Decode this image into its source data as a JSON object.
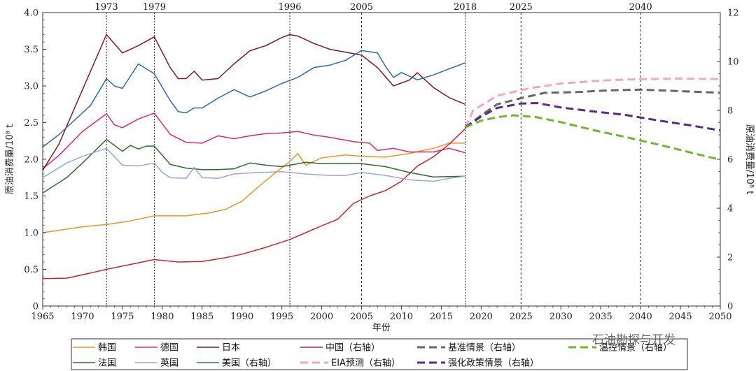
{
  "watermark": "石油勘探与开发",
  "chart_data": {
    "type": "line",
    "xlabel": "年份",
    "ylabel_left": "原油消费量/10⁸ t",
    "ylabel_right": "原油消费量/10⁸ t",
    "xlim": [
      1965,
      2050
    ],
    "ylim_left": [
      0,
      4.0
    ],
    "ylim_right": [
      0,
      12
    ],
    "x_ticks": [
      "1965",
      "1970",
      "1975",
      "1980",
      "1985",
      "1990",
      "1995",
      "2000",
      "2005",
      "2010",
      "2015",
      "2020",
      "2025",
      "2030",
      "2035",
      "2040",
      "2045",
      "2050"
    ],
    "y_left_ticks": [
      "0",
      "0.5",
      "1.0",
      "1.5",
      "2.0",
      "2.5",
      "3.0",
      "3.5",
      "4.0"
    ],
    "y_right_ticks": [
      "0",
      "2",
      "4",
      "6",
      "8",
      "10",
      "12"
    ],
    "reference_years": [
      {
        "year": 1973,
        "label": "1973",
        "style": "dotted"
      },
      {
        "year": 1979,
        "label": "1979",
        "style": "dotted"
      },
      {
        "year": 1996,
        "label": "1996",
        "style": "dotted"
      },
      {
        "year": 2005,
        "label": "2005",
        "style": "dashed"
      },
      {
        "year": 2018,
        "label": "2018",
        "style": "dotted"
      },
      {
        "year": 2025,
        "label": "2025",
        "style": "dashed"
      },
      {
        "year": 2040,
        "label": "2040",
        "style": "dashed"
      }
    ],
    "series": [
      {
        "name": "韩国",
        "color": "#f0912a",
        "axis": "left",
        "dash": "solid",
        "points": [
          [
            1965,
            1.0
          ],
          [
            1970,
            1.08
          ],
          [
            1973,
            1.11
          ],
          [
            1976,
            1.16
          ],
          [
            1979,
            1.23
          ],
          [
            1983,
            1.23
          ],
          [
            1986,
            1.27
          ],
          [
            1988,
            1.32
          ],
          [
            1990,
            1.43
          ],
          [
            1992,
            1.62
          ],
          [
            1994,
            1.8
          ],
          [
            1996,
            1.97
          ],
          [
            1997,
            2.08
          ],
          [
            1998,
            1.92
          ],
          [
            2000,
            2.02
          ],
          [
            2003,
            2.06
          ],
          [
            2005,
            2.04
          ],
          [
            2008,
            2.03
          ],
          [
            2011,
            2.08
          ],
          [
            2014,
            2.15
          ],
          [
            2016,
            2.22
          ],
          [
            2018,
            2.22
          ]
        ]
      },
      {
        "name": "德国",
        "color": "#d8286f",
        "axis": "left",
        "dash": "solid",
        "points": [
          [
            1965,
            1.87
          ],
          [
            1967,
            2.05
          ],
          [
            1970,
            2.38
          ],
          [
            1973,
            2.62
          ],
          [
            1974,
            2.47
          ],
          [
            1975,
            2.43
          ],
          [
            1977,
            2.55
          ],
          [
            1979,
            2.63
          ],
          [
            1981,
            2.34
          ],
          [
            1983,
            2.23
          ],
          [
            1985,
            2.22
          ],
          [
            1987,
            2.32
          ],
          [
            1989,
            2.28
          ],
          [
            1991,
            2.32
          ],
          [
            1993,
            2.35
          ],
          [
            1995,
            2.36
          ],
          [
            1997,
            2.38
          ],
          [
            1999,
            2.33
          ],
          [
            2001,
            2.3
          ],
          [
            2004,
            2.24
          ],
          [
            2006,
            2.22
          ],
          [
            2007,
            2.12
          ],
          [
            2009,
            2.15
          ],
          [
            2011,
            2.1
          ],
          [
            2014,
            2.1
          ],
          [
            2016,
            2.15
          ],
          [
            2018,
            2.09
          ]
        ]
      },
      {
        "name": "日本",
        "color": "#7c1a1e",
        "axis": "left",
        "dash": "solid",
        "points": [
          [
            1965,
            1.85
          ],
          [
            1967,
            2.2
          ],
          [
            1969,
            2.7
          ],
          [
            1971,
            3.2
          ],
          [
            1973,
            3.7
          ],
          [
            1975,
            3.45
          ],
          [
            1977,
            3.55
          ],
          [
            1979,
            3.67
          ],
          [
            1981,
            3.25
          ],
          [
            1982,
            3.1
          ],
          [
            1983,
            3.1
          ],
          [
            1984,
            3.2
          ],
          [
            1985,
            3.08
          ],
          [
            1987,
            3.1
          ],
          [
            1989,
            3.3
          ],
          [
            1991,
            3.48
          ],
          [
            1993,
            3.55
          ],
          [
            1995,
            3.66
          ],
          [
            1996,
            3.7
          ],
          [
            1997,
            3.68
          ],
          [
            1999,
            3.58
          ],
          [
            2001,
            3.5
          ],
          [
            2003,
            3.46
          ],
          [
            2005,
            3.42
          ],
          [
            2007,
            3.25
          ],
          [
            2009,
            3.0
          ],
          [
            2011,
            3.08
          ],
          [
            2012,
            3.18
          ],
          [
            2014,
            2.98
          ],
          [
            2016,
            2.84
          ],
          [
            2018,
            2.75
          ]
        ]
      },
      {
        "name": "中国（右轴）",
        "color": "#c0262c",
        "axis": "right",
        "dash": "solid",
        "points": [
          [
            1965,
            1.12
          ],
          [
            1968,
            1.14
          ],
          [
            1971,
            1.35
          ],
          [
            1973,
            1.5
          ],
          [
            1976,
            1.7
          ],
          [
            1979,
            1.9
          ],
          [
            1982,
            1.8
          ],
          [
            1985,
            1.82
          ],
          [
            1988,
            1.98
          ],
          [
            1990,
            2.12
          ],
          [
            1993,
            2.4
          ],
          [
            1996,
            2.72
          ],
          [
            1998,
            3.0
          ],
          [
            2000,
            3.28
          ],
          [
            2002,
            3.55
          ],
          [
            2004,
            4.2
          ],
          [
            2006,
            4.5
          ],
          [
            2008,
            4.72
          ],
          [
            2010,
            5.1
          ],
          [
            2012,
            5.72
          ],
          [
            2014,
            6.1
          ],
          [
            2016,
            6.62
          ],
          [
            2018,
            7.25
          ]
        ]
      },
      {
        "name": "法国",
        "color": "#2e6b2e",
        "axis": "left",
        "dash": "solid",
        "points": [
          [
            1965,
            1.54
          ],
          [
            1968,
            1.75
          ],
          [
            1970,
            1.95
          ],
          [
            1973,
            2.27
          ],
          [
            1975,
            2.11
          ],
          [
            1976,
            2.19
          ],
          [
            1977,
            2.14
          ],
          [
            1978,
            2.18
          ],
          [
            1979,
            2.18
          ],
          [
            1981,
            1.93
          ],
          [
            1983,
            1.88
          ],
          [
            1985,
            1.86
          ],
          [
            1987,
            1.86
          ],
          [
            1989,
            1.87
          ],
          [
            1991,
            1.95
          ],
          [
            1993,
            1.92
          ],
          [
            1995,
            1.9
          ],
          [
            1998,
            1.96
          ],
          [
            2000,
            1.94
          ],
          [
            2003,
            1.94
          ],
          [
            2005,
            1.94
          ],
          [
            2008,
            1.9
          ],
          [
            2011,
            1.82
          ],
          [
            2014,
            1.76
          ],
          [
            2018,
            1.77
          ]
        ]
      },
      {
        "name": "英国",
        "color": "#9aa6d8",
        "axis": "left",
        "dash": "solid",
        "points": [
          [
            1965,
            1.75
          ],
          [
            1968,
            1.95
          ],
          [
            1970,
            2.04
          ],
          [
            1973,
            2.15
          ],
          [
            1975,
            1.92
          ],
          [
            1977,
            1.91
          ],
          [
            1979,
            1.95
          ],
          [
            1980,
            1.82
          ],
          [
            1981,
            1.75
          ],
          [
            1983,
            1.74
          ],
          [
            1984,
            1.89
          ],
          [
            1985,
            1.75
          ],
          [
            1987,
            1.74
          ],
          [
            1989,
            1.8
          ],
          [
            1992,
            1.82
          ],
          [
            1995,
            1.83
          ],
          [
            1998,
            1.8
          ],
          [
            2001,
            1.78
          ],
          [
            2003,
            1.78
          ],
          [
            2005,
            1.82
          ],
          [
            2008,
            1.78
          ],
          [
            2011,
            1.72
          ],
          [
            2014,
            1.7
          ],
          [
            2016,
            1.74
          ],
          [
            2018,
            1.77
          ]
        ]
      },
      {
        "name": "美国（右轴）",
        "color": "#2f6aa8",
        "axis": "right",
        "dash": "solid",
        "points": [
          [
            1965,
            6.5
          ],
          [
            1967,
            7.0
          ],
          [
            1970,
            7.9
          ],
          [
            1971,
            8.2
          ],
          [
            1973,
            9.3
          ],
          [
            1974,
            9.0
          ],
          [
            1975,
            8.9
          ],
          [
            1977,
            9.9
          ],
          [
            1979,
            9.5
          ],
          [
            1981,
            8.4
          ],
          [
            1982,
            7.95
          ],
          [
            1983,
            7.9
          ],
          [
            1984,
            8.1
          ],
          [
            1985,
            8.1
          ],
          [
            1987,
            8.5
          ],
          [
            1989,
            8.85
          ],
          [
            1991,
            8.55
          ],
          [
            1993,
            8.8
          ],
          [
            1995,
            9.1
          ],
          [
            1997,
            9.35
          ],
          [
            1999,
            9.75
          ],
          [
            2001,
            9.85
          ],
          [
            2003,
            10.05
          ],
          [
            2005,
            10.45
          ],
          [
            2007,
            10.35
          ],
          [
            2008,
            9.8
          ],
          [
            2009,
            9.35
          ],
          [
            2010,
            9.55
          ],
          [
            2012,
            9.25
          ],
          [
            2014,
            9.45
          ],
          [
            2016,
            9.7
          ],
          [
            2018,
            9.95
          ]
        ]
      },
      {
        "name": "EIA预测（右轴）",
        "color": "#f2a6c4",
        "axis": "right",
        "dash": "long",
        "points": [
          [
            2018,
            7.3
          ],
          [
            2019,
            8.0
          ],
          [
            2022,
            8.6
          ],
          [
            2026,
            8.9
          ],
          [
            2030,
            9.1
          ],
          [
            2035,
            9.22
          ],
          [
            2040,
            9.28
          ],
          [
            2045,
            9.3
          ],
          [
            2050,
            9.28
          ]
        ]
      },
      {
        "name": "基准情景（右轴）",
        "color": "#666666",
        "axis": "right",
        "dash": "long",
        "points": [
          [
            2018,
            7.3
          ],
          [
            2020,
            7.8
          ],
          [
            2022,
            8.25
          ],
          [
            2025,
            8.5
          ],
          [
            2028,
            8.72
          ],
          [
            2032,
            8.75
          ],
          [
            2036,
            8.82
          ],
          [
            2040,
            8.85
          ],
          [
            2044,
            8.8
          ],
          [
            2050,
            8.72
          ]
        ]
      },
      {
        "name": "强化政策情景（右轴）",
        "color": "#5b2a8a",
        "axis": "right",
        "dash": "long",
        "points": [
          [
            2018,
            7.3
          ],
          [
            2020,
            7.75
          ],
          [
            2022,
            8.1
          ],
          [
            2025,
            8.28
          ],
          [
            2027,
            8.3
          ],
          [
            2030,
            8.12
          ],
          [
            2034,
            7.96
          ],
          [
            2038,
            7.82
          ],
          [
            2042,
            7.6
          ],
          [
            2046,
            7.4
          ],
          [
            2050,
            7.18
          ]
        ]
      },
      {
        "name": "温控情景（右轴）",
        "color": "#72b531",
        "axis": "right",
        "dash": "long",
        "points": [
          [
            2018,
            7.3
          ],
          [
            2020,
            7.58
          ],
          [
            2022,
            7.72
          ],
          [
            2024,
            7.8
          ],
          [
            2027,
            7.72
          ],
          [
            2030,
            7.52
          ],
          [
            2034,
            7.2
          ],
          [
            2038,
            6.92
          ],
          [
            2042,
            6.62
          ],
          [
            2046,
            6.3
          ],
          [
            2050,
            5.98
          ]
        ]
      }
    ],
    "legend": {
      "placement": "bottom",
      "rows": [
        [
          "韩国",
          "德国",
          "日本",
          "中国（右轴）",
          "基准情景（右轴）",
          "温控情景（右轴）"
        ],
        [
          "法国",
          "英国",
          "美国（右轴）",
          "EIA预测（右轴）",
          "强化政策情景（右轴）"
        ]
      ]
    }
  }
}
